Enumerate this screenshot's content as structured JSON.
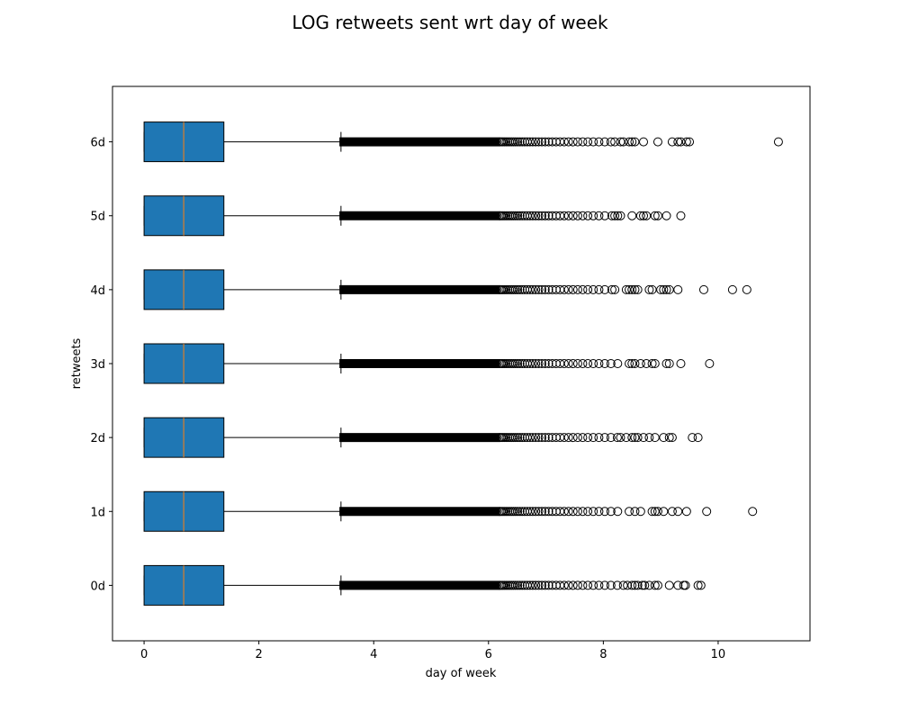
{
  "chart_data": {
    "type": "boxplot",
    "orientation": "horizontal",
    "title": "LOG retweets sent wrt day of week",
    "xlabel": "day of week",
    "ylabel": "retweets",
    "xlim": [
      -0.55,
      11.6
    ],
    "xticks": [
      0,
      2,
      4,
      6,
      8,
      10
    ],
    "categories": [
      "0d",
      "1d",
      "2d",
      "3d",
      "4d",
      "5d",
      "6d"
    ],
    "box_color": "#1f77b4",
    "median_color": "#ff7f0e",
    "grid": false,
    "boxes": [
      {
        "label": "0d",
        "whislo": 0,
        "q1": 0,
        "median": 0.69,
        "q3": 1.39,
        "whishi": 3.43,
        "outlier_band": [
          3.45,
          8.3
        ],
        "fliers": [
          8.35,
          8.42,
          8.5,
          8.55,
          8.6,
          8.68,
          8.72,
          8.8,
          8.9,
          8.95,
          9.15,
          9.3,
          9.4,
          9.43,
          9.65,
          9.7
        ]
      },
      {
        "label": "1d",
        "whislo": 0,
        "q1": 0,
        "median": 0.69,
        "q3": 1.39,
        "whishi": 3.43,
        "outlier_band": [
          3.45,
          8.2
        ],
        "fliers": [
          8.25,
          8.45,
          8.55,
          8.65,
          8.85,
          8.9,
          8.95,
          9.05,
          9.2,
          9.3,
          9.45,
          9.8,
          10.6
        ]
      },
      {
        "label": "2d",
        "whislo": 0,
        "q1": 0,
        "median": 0.69,
        "q3": 1.39,
        "whishi": 3.43,
        "outlier_band": [
          3.45,
          8.25
        ],
        "fliers": [
          8.3,
          8.4,
          8.5,
          8.55,
          8.6,
          8.7,
          8.8,
          8.9,
          9.05,
          9.15,
          9.2,
          9.55,
          9.65
        ]
      },
      {
        "label": "3d",
        "whislo": 0,
        "q1": 0,
        "median": 0.69,
        "q3": 1.39,
        "whishi": 3.43,
        "outlier_band": [
          3.45,
          8.15
        ],
        "fliers": [
          8.25,
          8.45,
          8.5,
          8.55,
          8.65,
          8.75,
          8.85,
          8.9,
          9.1,
          9.15,
          9.35,
          9.85
        ]
      },
      {
        "label": "4d",
        "whislo": 0,
        "q1": 0,
        "median": 0.69,
        "q3": 1.39,
        "whishi": 3.43,
        "outlier_band": [
          3.45,
          8.1
        ],
        "fliers": [
          8.15,
          8.2,
          8.4,
          8.45,
          8.5,
          8.55,
          8.6,
          8.8,
          8.85,
          9.0,
          9.05,
          9.1,
          9.15,
          9.3,
          9.75,
          10.25,
          10.5
        ]
      },
      {
        "label": "5d",
        "whislo": 0,
        "q1": 0,
        "median": 0.69,
        "q3": 1.39,
        "whishi": 3.43,
        "outlier_band": [
          3.45,
          8.1
        ],
        "fliers": [
          8.15,
          8.2,
          8.25,
          8.3,
          8.5,
          8.65,
          8.7,
          8.75,
          8.9,
          8.95,
          9.1,
          9.35
        ]
      },
      {
        "label": "6d",
        "whislo": 0,
        "q1": 0,
        "median": 0.69,
        "q3": 1.39,
        "whishi": 3.43,
        "outlier_band": [
          3.45,
          8.15
        ],
        "fliers": [
          8.2,
          8.3,
          8.35,
          8.45,
          8.5,
          8.55,
          8.7,
          8.95,
          9.2,
          9.3,
          9.35,
          9.45,
          9.5,
          11.05
        ]
      }
    ]
  }
}
